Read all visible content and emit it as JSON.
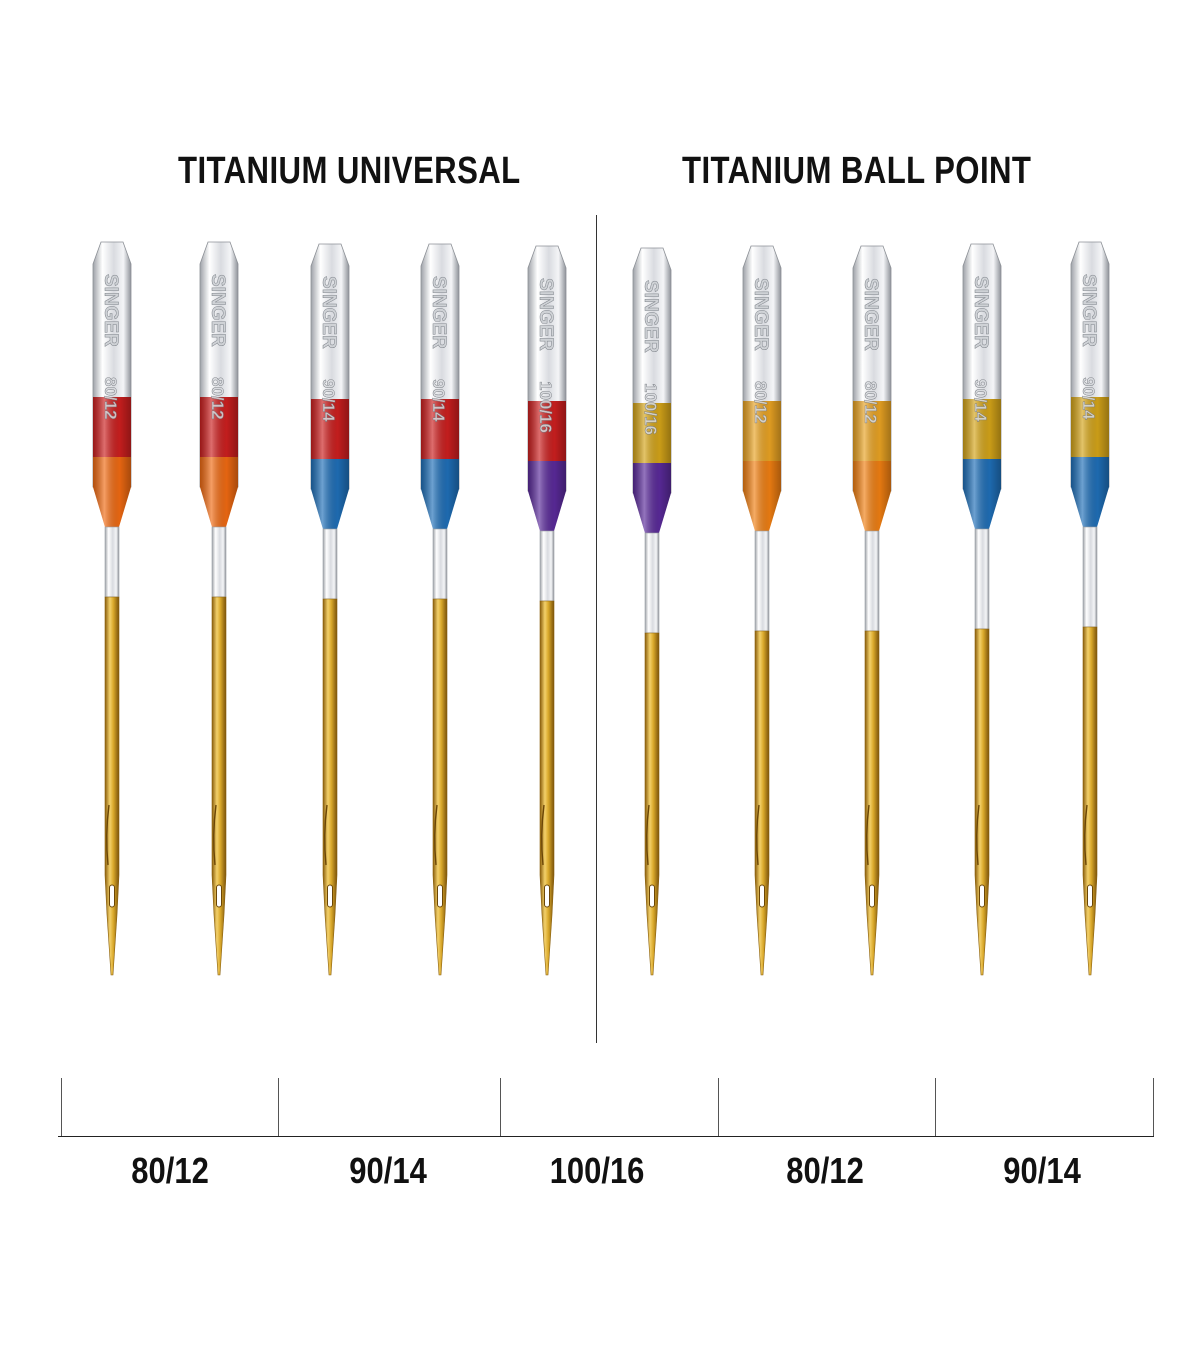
{
  "titles": {
    "universal": "TITANIUM UNIVERSAL",
    "ballpoint": "TITANIUM BALL POINT"
  },
  "needles": [
    {
      "group": "universal",
      "size": "80/12",
      "band_top": "#cc1f1f",
      "band_bottom": "#f06a12",
      "brand": "SINGER"
    },
    {
      "group": "universal",
      "size": "80/12",
      "band_top": "#cc1f1f",
      "band_bottom": "#f06a12",
      "brand": "SINGER"
    },
    {
      "group": "universal",
      "size": "90/14",
      "band_top": "#cc1f1f",
      "band_bottom": "#1f6fb8",
      "brand": "SINGER"
    },
    {
      "group": "universal",
      "size": "90/14",
      "band_top": "#cc1f1f",
      "band_bottom": "#1f6fb8",
      "brand": "SINGER"
    },
    {
      "group": "universal",
      "size": "100/16",
      "band_top": "#cc1f1f",
      "band_bottom": "#5a2a9a",
      "brand": "SINGER"
    },
    {
      "group": "ballpoint",
      "size": "100/16",
      "band_top": "#d4a419",
      "band_bottom": "#5a2a9a",
      "brand": "SINGER"
    },
    {
      "group": "ballpoint",
      "size": "80/12",
      "band_top": "#e9a323",
      "band_bottom": "#f07f12",
      "brand": "SINGER"
    },
    {
      "group": "ballpoint",
      "size": "80/12",
      "band_top": "#e9a323",
      "band_bottom": "#f07f12",
      "brand": "SINGER"
    },
    {
      "group": "ballpoint",
      "size": "90/14",
      "band_top": "#d4a419",
      "band_bottom": "#1f6fb8",
      "brand": "SINGER"
    },
    {
      "group": "ballpoint",
      "size": "90/14",
      "band_top": "#d4a419",
      "band_bottom": "#1f6fb8",
      "brand": "SINGER"
    }
  ],
  "size_labels": [
    "80/12",
    "90/14",
    "100/16",
    "80/12",
    "90/14"
  ],
  "colors": {
    "silver": "#e6e7ea",
    "gold": "#d9a82a",
    "text": "#111111"
  }
}
